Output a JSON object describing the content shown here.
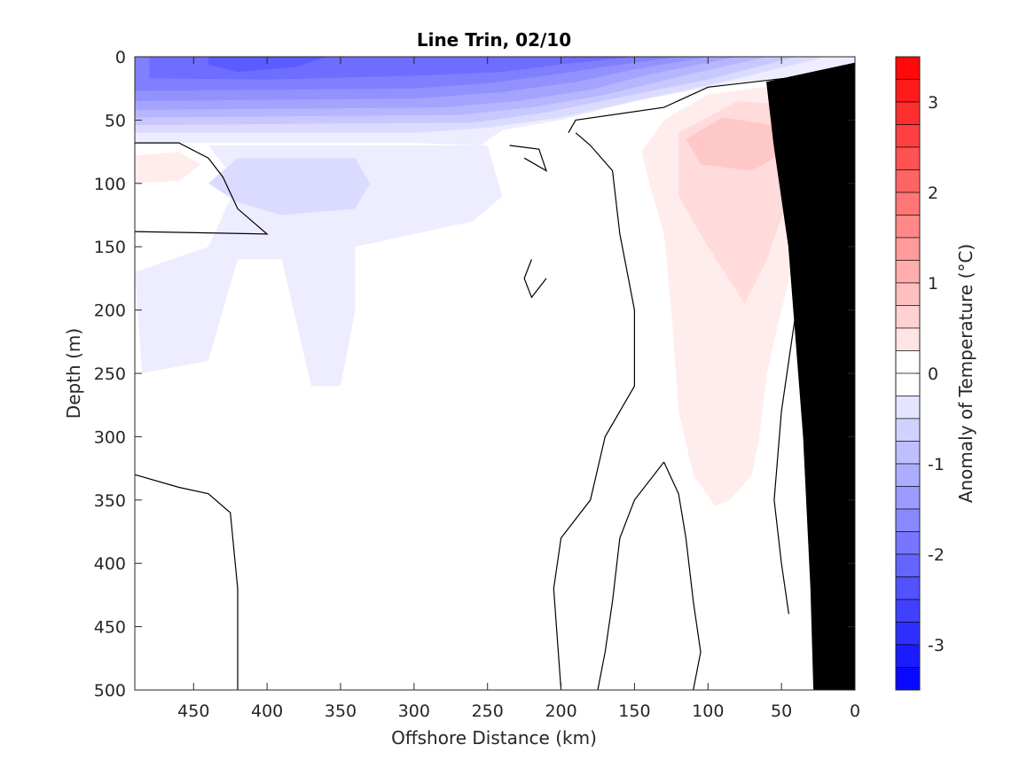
{
  "chart_data": {
    "type": "contour",
    "title": "Line Trin, 02/10",
    "xlabel": "Offshore Distance (km)",
    "ylabel": "Depth (m)",
    "colorbar_label": "Anomaly of Temperature (°C)",
    "xlim": [
      490,
      0
    ],
    "ylim": [
      500,
      0
    ],
    "x_reversed": true,
    "y_reversed": true,
    "xticks": [
      450,
      400,
      350,
      300,
      250,
      200,
      150,
      100,
      50,
      0
    ],
    "yticks": [
      0,
      50,
      100,
      150,
      200,
      250,
      300,
      350,
      400,
      450,
      500
    ],
    "colorbar": {
      "range": [
        -3.5,
        3.5
      ],
      "step": 0.25,
      "ticks": [
        3,
        2,
        1,
        0,
        -1,
        -2,
        -3
      ],
      "cold_color": "#0000ff",
      "warm_color": "#ff0000",
      "neutral_color": "#ffffff"
    },
    "contour_levels": [
      -2.25,
      -2.0,
      -1.75,
      -1.5,
      -1.25,
      -1.0,
      -0.75,
      -0.5,
      -0.25,
      0.25,
      0.5,
      0.75
    ],
    "regions": [
      {
        "name": "cold-layer-edge",
        "anomaly": -0.25,
        "points": [
          [
            490,
            0
          ],
          [
            0,
            0
          ],
          [
            0,
            12
          ],
          [
            80,
            20
          ],
          [
            150,
            35
          ],
          [
            200,
            50
          ],
          [
            240,
            58
          ],
          [
            255,
            70
          ],
          [
            300,
            68
          ],
          [
            490,
            68
          ]
        ]
      },
      {
        "name": "cold-layer-1",
        "anomaly": -0.5,
        "points": [
          [
            490,
            0
          ],
          [
            20,
            0
          ],
          [
            90,
            20
          ],
          [
            150,
            35
          ],
          [
            200,
            48
          ],
          [
            250,
            56
          ],
          [
            300,
            60
          ],
          [
            490,
            60
          ]
        ]
      },
      {
        "name": "cold-layer-2",
        "anomaly": -0.75,
        "points": [
          [
            490,
            0
          ],
          [
            40,
            0
          ],
          [
            100,
            18
          ],
          [
            160,
            32
          ],
          [
            210,
            44
          ],
          [
            260,
            52
          ],
          [
            490,
            54
          ]
        ]
      },
      {
        "name": "cold-layer-3",
        "anomaly": -1.0,
        "points": [
          [
            490,
            0
          ],
          [
            60,
            0
          ],
          [
            120,
            16
          ],
          [
            170,
            30
          ],
          [
            220,
            40
          ],
          [
            270,
            46
          ],
          [
            490,
            48
          ]
        ]
      },
      {
        "name": "cold-layer-4",
        "anomaly": -1.25,
        "points": [
          [
            490,
            0
          ],
          [
            80,
            0
          ],
          [
            140,
            14
          ],
          [
            180,
            26
          ],
          [
            230,
            35
          ],
          [
            280,
            40
          ],
          [
            490,
            42
          ]
        ]
      },
      {
        "name": "cold-layer-5",
        "anomaly": -1.5,
        "points": [
          [
            490,
            0
          ],
          [
            100,
            0
          ],
          [
            150,
            10
          ],
          [
            190,
            20
          ],
          [
            240,
            28
          ],
          [
            300,
            33
          ],
          [
            490,
            35
          ]
        ]
      },
      {
        "name": "cold-layer-6",
        "anomaly": -1.75,
        "points": [
          [
            490,
            0
          ],
          [
            120,
            0
          ],
          [
            170,
            8
          ],
          [
            210,
            15
          ],
          [
            250,
            21
          ],
          [
            300,
            25
          ],
          [
            490,
            27
          ]
        ]
      },
      {
        "name": "cold-layer-7",
        "anomaly": -2.0,
        "points": [
          [
            480,
            0
          ],
          [
            150,
            0
          ],
          [
            200,
            6
          ],
          [
            240,
            12
          ],
          [
            300,
            15
          ],
          [
            400,
            18
          ],
          [
            480,
            17
          ]
        ]
      },
      {
        "name": "cold-layer-8",
        "anomaly": -2.25,
        "points": [
          [
            440,
            0
          ],
          [
            360,
            0
          ],
          [
            380,
            8
          ],
          [
            420,
            12
          ],
          [
            440,
            6
          ]
        ]
      },
      {
        "name": "cold-tongue-deep",
        "anomaly": -0.25,
        "points": [
          [
            440,
            70
          ],
          [
            420,
            100
          ],
          [
            440,
            150
          ],
          [
            490,
            170
          ],
          [
            485,
            250
          ],
          [
            440,
            240
          ],
          [
            430,
            200
          ],
          [
            420,
            160
          ],
          [
            390,
            160
          ],
          [
            370,
            260
          ],
          [
            350,
            260
          ],
          [
            340,
            200
          ],
          [
            340,
            150
          ],
          [
            300,
            140
          ],
          [
            260,
            130
          ],
          [
            240,
            110
          ],
          [
            250,
            70
          ]
        ]
      },
      {
        "name": "cold-lens",
        "anomaly": -0.5,
        "points": [
          [
            420,
            80
          ],
          [
            380,
            80
          ],
          [
            340,
            80
          ],
          [
            330,
            100
          ],
          [
            340,
            120
          ],
          [
            390,
            125
          ],
          [
            420,
            115
          ],
          [
            440,
            100
          ]
        ]
      },
      {
        "name": "warm-offshore",
        "anomaly": 0.25,
        "points": [
          [
            490,
            78
          ],
          [
            460,
            75
          ],
          [
            445,
            85
          ],
          [
            460,
            98
          ],
          [
            490,
            100
          ]
        ]
      },
      {
        "name": "warm-core-1",
        "anomaly": 0.25,
        "points": [
          [
            10,
            20
          ],
          [
            50,
            22
          ],
          [
            100,
            30
          ],
          [
            130,
            50
          ],
          [
            145,
            75
          ],
          [
            140,
            100
          ],
          [
            130,
            140
          ],
          [
            125,
            200
          ],
          [
            120,
            280
          ],
          [
            110,
            330
          ],
          [
            95,
            355
          ],
          [
            85,
            350
          ],
          [
            70,
            330
          ],
          [
            65,
            300
          ],
          [
            60,
            250
          ],
          [
            50,
            200
          ],
          [
            35,
            130
          ],
          [
            20,
            100
          ],
          [
            5,
            80
          ],
          [
            3,
            40
          ]
        ]
      },
      {
        "name": "warm-core-2",
        "anomaly": 0.5,
        "points": [
          [
            20,
            40
          ],
          [
            80,
            35
          ],
          [
            120,
            60
          ],
          [
            120,
            110
          ],
          [
            100,
            150
          ],
          [
            75,
            195
          ],
          [
            60,
            160
          ],
          [
            45,
            110
          ],
          [
            35,
            80
          ]
        ]
      },
      {
        "name": "warm-core-3",
        "anomaly": 0.75,
        "points": [
          [
            50,
            55
          ],
          [
            90,
            48
          ],
          [
            115,
            65
          ],
          [
            105,
            85
          ],
          [
            70,
            90
          ],
          [
            55,
            80
          ]
        ]
      }
    ],
    "zero_contours": [
      [
        [
          490,
          68
        ],
        [
          460,
          68
        ],
        [
          440,
          80
        ],
        [
          430,
          95
        ],
        [
          420,
          120
        ],
        [
          400,
          140
        ],
        [
          490,
          138
        ]
      ],
      [
        [
          235,
          70
        ],
        [
          215,
          73
        ],
        [
          210,
          90
        ],
        [
          225,
          80
        ]
      ],
      [
        [
          220,
          160
        ],
        [
          225,
          175
        ],
        [
          220,
          190
        ],
        [
          210,
          175
        ]
      ],
      [
        [
          190,
          60
        ],
        [
          180,
          70
        ],
        [
          165,
          90
        ],
        [
          160,
          140
        ],
        [
          150,
          200
        ],
        [
          150,
          260
        ],
        [
          170,
          300
        ],
        [
          180,
          350
        ],
        [
          200,
          380
        ],
        [
          205,
          420
        ],
        [
          200,
          500
        ]
      ],
      [
        [
          0,
          12
        ],
        [
          40,
          16
        ],
        [
          100,
          24
        ],
        [
          130,
          40
        ],
        [
          190,
          50
        ],
        [
          195,
          60
        ]
      ],
      [
        [
          130,
          320
        ],
        [
          120,
          345
        ],
        [
          115,
          380
        ],
        [
          110,
          430
        ],
        [
          105,
          470
        ],
        [
          110,
          500
        ]
      ],
      [
        [
          130,
          320
        ],
        [
          150,
          350
        ],
        [
          160,
          380
        ],
        [
          165,
          430
        ],
        [
          170,
          470
        ],
        [
          175,
          500
        ]
      ],
      [
        [
          490,
          330
        ],
        [
          460,
          340
        ],
        [
          440,
          345
        ],
        [
          425,
          360
        ],
        [
          420,
          420
        ],
        [
          420,
          500
        ]
      ],
      [
        [
          25,
          190
        ],
        [
          40,
          200
        ],
        [
          50,
          280
        ],
        [
          55,
          350
        ],
        [
          50,
          400
        ],
        [
          45,
          440
        ]
      ]
    ],
    "land_mask": [
      [
        0,
        5
      ],
      [
        0,
        500
      ],
      [
        28,
        500
      ],
      [
        30,
        420
      ],
      [
        35,
        300
      ],
      [
        45,
        150
      ],
      [
        55,
        70
      ],
      [
        60,
        20
      ]
    ]
  }
}
